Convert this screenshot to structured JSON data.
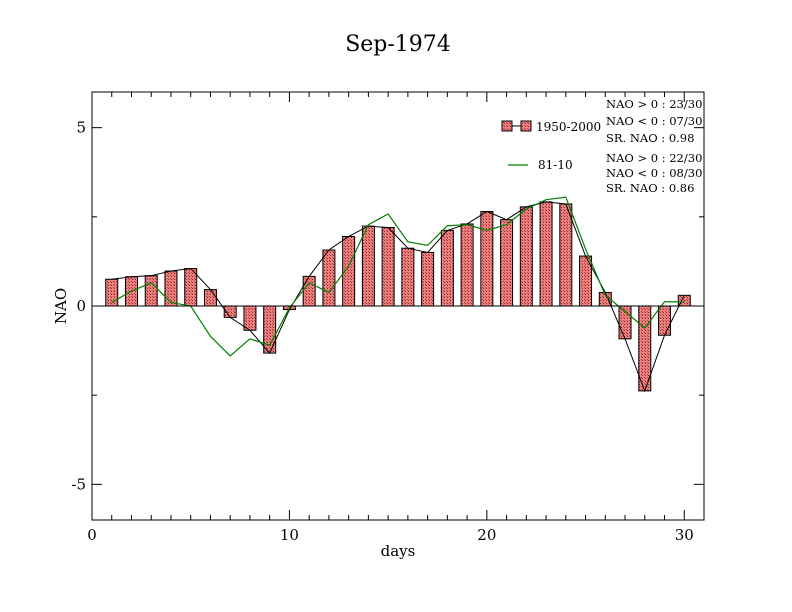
{
  "chart_data": {
    "type": "bar",
    "title": "Sep-1974",
    "xlabel": "days",
    "ylabel": "NAO",
    "xlim": [
      0,
      31
    ],
    "ylim": [
      -6,
      6
    ],
    "x_ticks": [
      0,
      10,
      20,
      30
    ],
    "y_ticks": [
      -5,
      0,
      5
    ],
    "x": [
      1,
      2,
      3,
      4,
      5,
      6,
      7,
      8,
      9,
      10,
      11,
      12,
      13,
      14,
      15,
      16,
      17,
      18,
      19,
      20,
      21,
      22,
      23,
      24,
      25,
      26,
      27,
      28,
      29,
      30
    ],
    "series": [
      {
        "name": "1950-2000",
        "type": "bar",
        "color": "#f08080",
        "values": [
          0.75,
          0.82,
          0.85,
          0.98,
          1.05,
          0.46,
          -0.32,
          -0.68,
          -1.32,
          -0.1,
          0.83,
          1.57,
          1.95,
          2.24,
          2.2,
          1.62,
          1.5,
          2.12,
          2.3,
          2.65,
          2.42,
          2.78,
          2.92,
          2.86,
          1.4,
          0.38,
          -0.92,
          -2.38,
          -0.82,
          0.3
        ]
      },
      {
        "name": "81-10",
        "type": "line",
        "color": "#008000",
        "values": [
          0.1,
          0.42,
          0.65,
          0.1,
          0.0,
          -0.85,
          -1.4,
          -0.92,
          -1.1,
          -0.05,
          0.65,
          0.38,
          1.12,
          2.28,
          2.58,
          1.8,
          1.7,
          2.25,
          2.28,
          2.12,
          2.28,
          2.72,
          2.98,
          3.05,
          1.6,
          0.3,
          -0.15,
          -0.62,
          0.12,
          0.12
        ]
      }
    ],
    "legend_position": "top-right",
    "grid": false,
    "stats": [
      {
        "positive": "NAO > 0 :  23/30",
        "negative": "NAO < 0 :  07/30",
        "ratio": "SR. NAO :  0.98"
      },
      {
        "positive": "NAO > 0 :  22/30",
        "negative": "NAO < 0 :  08/30",
        "ratio": "SR. NAO :  0.86"
      }
    ]
  }
}
